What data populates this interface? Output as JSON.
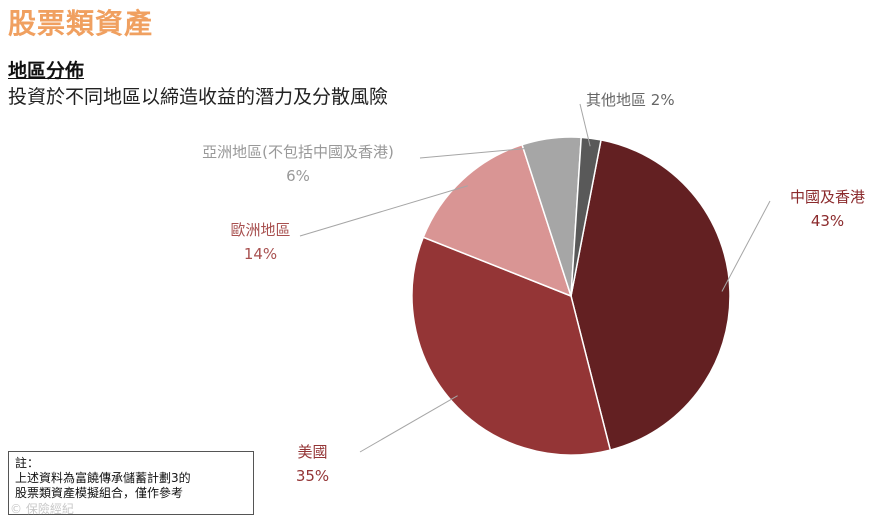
{
  "header": {
    "title": "股票類資產",
    "subtitle": "地區分佈",
    "description": "投資於不同地區以締造收益的潛力及分散風險"
  },
  "note": {
    "label": "註：",
    "line1": "上述資料為富饒傳承儲蓄計劃3的",
    "line2": "股票類資產模擬組合，僅作參考"
  },
  "watermark": "© 保險經紀",
  "colors": {
    "title": "#f0a060",
    "china_hk": "#632022",
    "usa": "#943536",
    "europe": "#d99594",
    "asia_ex": "#a6a6a6",
    "other": "#595959"
  },
  "chart_data": {
    "type": "pie",
    "slices": [
      {
        "name": "中國及香港",
        "value": 43,
        "pct_label": "43%",
        "color": "#632022",
        "label_color": "#8b2a2c"
      },
      {
        "name": "美國",
        "value": 35,
        "pct_label": "35%",
        "color": "#943536",
        "label_color": "#943536"
      },
      {
        "name": "歐洲地區",
        "value": 14,
        "pct_label": "14%",
        "color": "#d99594",
        "label_color": "#a8504f"
      },
      {
        "name": "亞洲地區(不包括中國及香港)",
        "value": 6,
        "pct_label": "6%",
        "color": "#a6a6a6",
        "label_color": "#999999"
      },
      {
        "name": "其他地區",
        "value": 2,
        "pct_label": "2%",
        "color": "#595959",
        "label_color": "#666666"
      }
    ]
  }
}
